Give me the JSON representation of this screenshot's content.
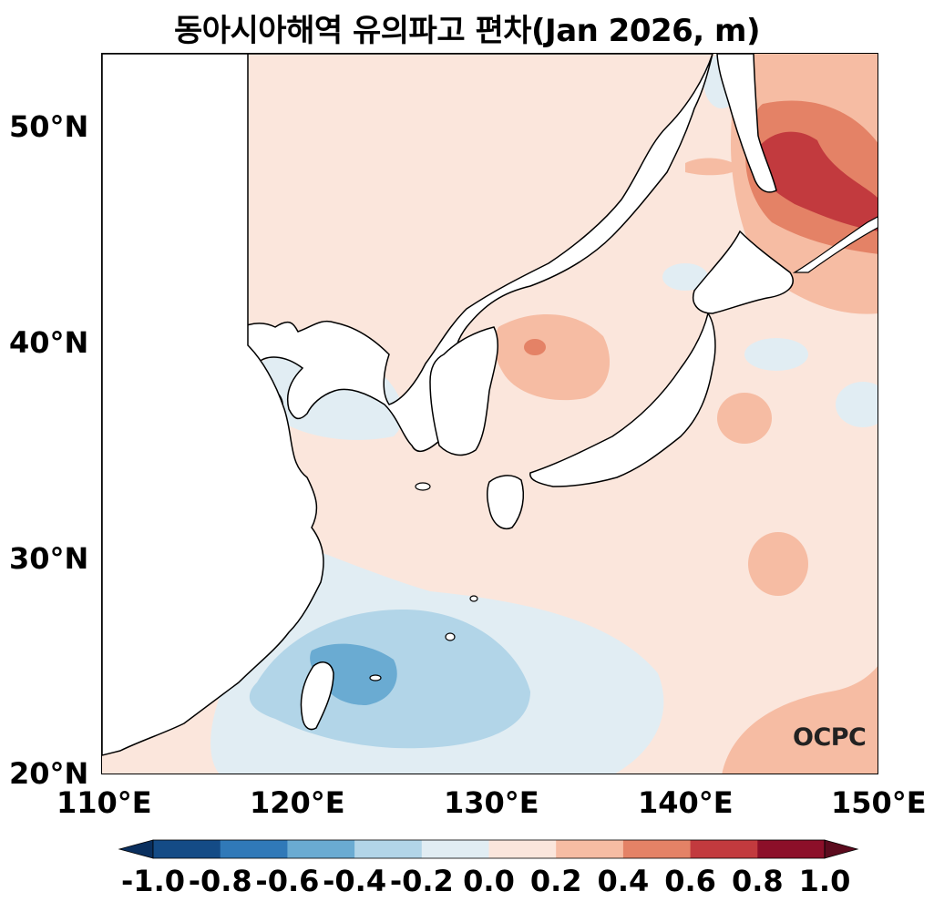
{
  "title": "동아시아해역 유의파고 편차(Jan 2026, m)",
  "watermark": "OCPC",
  "map": {
    "lon_range": [
      110,
      150
    ],
    "lat_range": [
      20,
      53.5
    ],
    "y_ticks": [
      {
        "lat": 50,
        "label": "50°N"
      },
      {
        "lat": 40,
        "label": "40°N"
      },
      {
        "lat": 30,
        "label": "30°N"
      },
      {
        "lat": 20,
        "label": "20°N"
      }
    ],
    "x_ticks": [
      {
        "lon": 110,
        "label": "110°E"
      },
      {
        "lon": 120,
        "label": "120°E"
      },
      {
        "lon": 130,
        "label": "130°E"
      },
      {
        "lon": 140,
        "label": "140°E"
      },
      {
        "lon": 150,
        "label": "150°E"
      }
    ],
    "field_description_colors": {
      "land": "#ffffff",
      "coastline": "#000000"
    }
  },
  "colorbar": {
    "labels": [
      "-1.0",
      "-0.8",
      "-0.6",
      "-0.4",
      "-0.2",
      "0.0",
      "0.2",
      "0.4",
      "0.6",
      "0.8",
      "1.0"
    ],
    "under_color": "#0a2f5e",
    "over_color": "#5c0b1e",
    "colors": [
      "#144b86",
      "#3079b8",
      "#6aabd2",
      "#b2d5e8",
      "#e1edf3",
      "#fbe6dc",
      "#f6bca3",
      "#e48266",
      "#c23a3e",
      "#8c0f29"
    ]
  }
}
